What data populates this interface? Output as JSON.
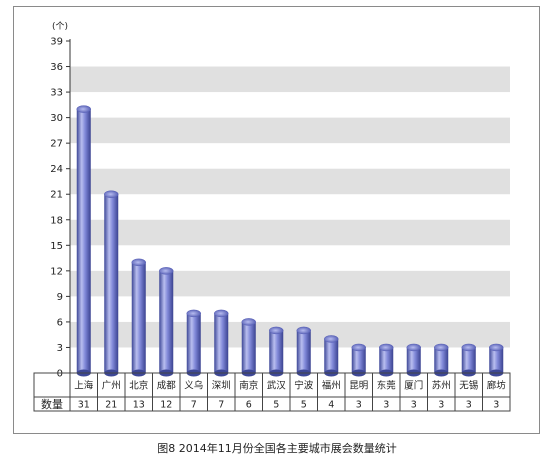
{
  "chart_data": {
    "type": "bar",
    "title": "图8 2014年11月份全国各主要城市展会数量统计",
    "unit": "(个)",
    "categories": [
      "上海",
      "广州",
      "北京",
      "成都",
      "义乌",
      "深圳",
      "南京",
      "武汉",
      "宁波",
      "福州",
      "昆明",
      "东莞",
      "厦门",
      "苏州",
      "无锡",
      "廊坊"
    ],
    "series": [
      {
        "name": "数量",
        "values": [
          31,
          21,
          13,
          12,
          7,
          7,
          6,
          5,
          5,
          4,
          3,
          3,
          3,
          3,
          3,
          3
        ]
      }
    ],
    "yticks": [
      0,
      3,
      6,
      9,
      12,
      15,
      18,
      21,
      24,
      27,
      30,
      33,
      36,
      39
    ],
    "ylim": [
      0,
      39
    ],
    "grid": "alternating horizontal bands",
    "table_row_label": "数量",
    "bar_color": "#7b84d8",
    "band_color": "#e0e0e0"
  }
}
